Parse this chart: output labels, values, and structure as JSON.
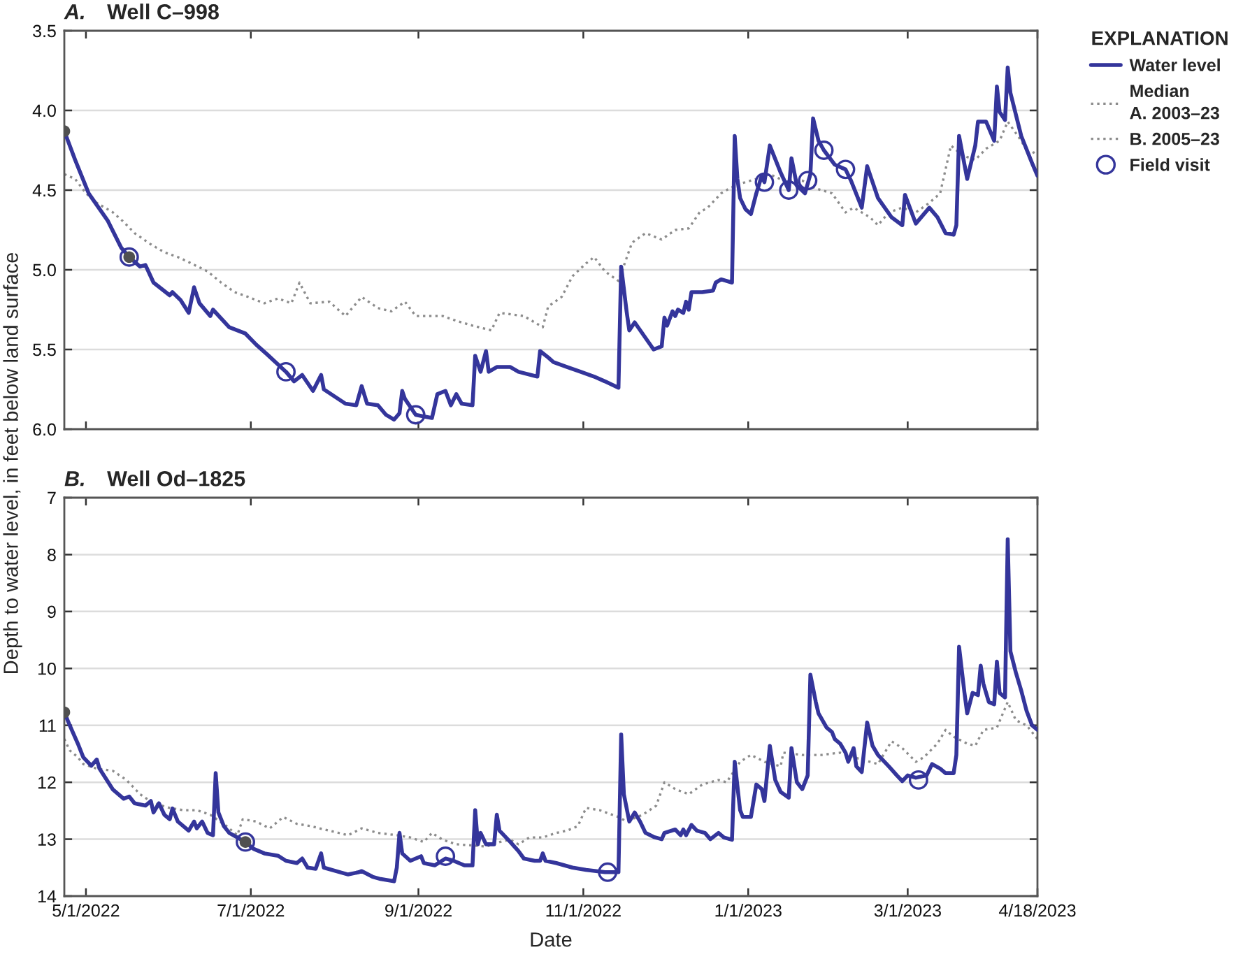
{
  "chart_data": [
    {
      "type": "line",
      "title": "A. Well C–998",
      "ylabel": "Depth to water level, in feet below land surface",
      "legend_title": "EXPLANATION",
      "legend": "right",
      "grid": "y",
      "tick_labels": "y",
      "xlim": [
        "2022-04-23",
        "2023-04-18"
      ],
      "xticks": [
        "2022-05-01",
        "2022-07-01",
        "2022-09-01",
        "2022-11-01",
        "2023-01-01",
        "2023-03-01",
        "2023-04-18"
      ],
      "ylim": [
        6.0,
        3.5
      ],
      "yticks": [
        3.5,
        {
          "value": 4,
          "label": "4.0"
        },
        4.5,
        {
          "value": 5,
          "label": "5.0"
        },
        5.5,
        {
          "value": 6,
          "label": "6.0"
        }
      ],
      "series": [
        {
          "name": "Water level",
          "line_style": "solid",
          "color": "#34359b",
          "x": [
            "2022-04-23",
            "2022-04-27",
            "2022-05-02",
            "2022-05-09",
            "2022-05-14",
            "2022-05-17",
            "2022-05-21",
            "2022-05-23",
            "2022-05-26",
            "2022-06-01",
            "2022-06-02",
            "2022-06-05",
            "2022-06-08",
            "2022-06-10",
            "2022-06-12",
            "2022-06-16",
            "2022-06-17",
            "2022-06-23",
            "2022-06-29",
            "2022-07-03",
            "2022-07-07",
            "2022-07-14",
            "2022-07-17",
            "2022-07-20",
            "2022-07-24",
            "2022-07-27",
            "2022-07-28",
            "2022-08-05",
            "2022-08-09",
            "2022-08-11",
            "2022-08-13",
            "2022-08-17",
            "2022-08-20",
            "2022-08-23",
            "2022-08-25",
            "2022-08-26",
            "2022-08-27",
            "2022-08-31",
            "2022-09-06",
            "2022-09-08",
            "2022-09-11",
            "2022-09-13",
            "2022-09-15",
            "2022-09-17",
            "2022-09-21",
            "2022-09-22",
            "2022-09-24",
            "2022-09-26",
            "2022-09-27",
            "2022-09-30",
            "2022-10-05",
            "2022-10-08",
            "2022-10-15",
            "2022-10-16",
            "2022-10-19",
            "2022-10-21",
            "2022-10-26",
            "2022-10-31",
            "2022-11-05",
            "2022-11-09",
            "2022-11-14",
            "2022-11-15",
            "2022-11-17",
            "2022-11-18",
            "2022-11-20",
            "2022-11-27",
            "2022-11-30",
            "2022-12-01",
            "2022-12-02",
            "2022-12-04",
            "2022-12-05",
            "2022-12-06",
            "2022-12-08",
            "2022-12-09",
            "2022-12-10",
            "2022-12-11",
            "2022-12-15",
            "2022-12-19",
            "2022-12-20",
            "2022-12-22",
            "2022-12-26",
            "2022-12-27",
            "2022-12-28",
            "2022-12-29",
            "2022-12-31",
            "2023-01-02",
            "2023-01-04",
            "2023-01-06",
            "2023-01-07",
            "2023-01-09",
            "2023-01-13",
            "2023-01-16",
            "2023-01-17",
            "2023-01-19",
            "2023-01-22",
            "2023-01-24",
            "2023-01-25",
            "2023-01-27",
            "2023-01-29",
            "2023-02-02",
            "2023-02-06",
            "2023-02-08",
            "2023-02-12",
            "2023-02-14",
            "2023-02-18",
            "2023-02-23",
            "2023-02-27",
            "2023-02-28",
            "2023-03-04",
            "2023-03-09",
            "2023-03-12",
            "2023-03-15",
            "2023-03-18",
            "2023-03-19",
            "2023-03-20",
            "2023-03-23",
            "2023-03-26",
            "2023-03-27",
            "2023-03-30",
            "2023-04-02",
            "2023-04-03",
            "2023-04-04",
            "2023-04-06",
            "2023-04-07",
            "2023-04-08",
            "2023-04-12",
            "2023-04-16",
            "2023-04-18"
          ],
          "values": [
            4.13,
            4.31,
            4.52,
            4.69,
            4.86,
            4.92,
            4.98,
            4.97,
            5.08,
            5.16,
            5.14,
            5.19,
            5.27,
            5.11,
            5.21,
            5.29,
            5.25,
            5.36,
            5.4,
            5.47,
            5.53,
            5.64,
            5.7,
            5.66,
            5.76,
            5.66,
            5.75,
            5.84,
            5.85,
            5.73,
            5.84,
            5.85,
            5.91,
            5.94,
            5.9,
            5.76,
            5.81,
            5.91,
            5.93,
            5.78,
            5.76,
            5.85,
            5.78,
            5.84,
            5.85,
            5.54,
            5.64,
            5.51,
            5.64,
            5.61,
            5.61,
            5.64,
            5.67,
            5.51,
            5.55,
            5.58,
            5.61,
            5.64,
            5.67,
            5.7,
            5.74,
            4.98,
            5.26,
            5.38,
            5.33,
            5.5,
            5.48,
            5.3,
            5.35,
            5.26,
            5.29,
            5.25,
            5.27,
            5.2,
            5.25,
            5.14,
            5.14,
            5.13,
            5.08,
            5.06,
            5.08,
            4.16,
            4.43,
            4.55,
            4.62,
            4.65,
            4.52,
            4.41,
            4.45,
            4.22,
            4.39,
            4.5,
            4.3,
            4.47,
            4.52,
            4.4,
            4.05,
            4.19,
            4.25,
            4.34,
            4.37,
            4.44,
            4.61,
            4.35,
            4.55,
            4.67,
            4.72,
            4.53,
            4.71,
            4.61,
            4.67,
            4.77,
            4.78,
            4.72,
            4.16,
            4.43,
            4.22,
            4.07,
            4.07,
            4.19,
            3.85,
            4.01,
            4.06,
            3.73,
            3.89,
            4.16,
            4.33,
            4.41
          ]
        },
        {
          "name": "Median\nA. 2003–23",
          "line_style": "dotted",
          "color": "#8c8c8c",
          "x": [
            "2022-04-23",
            "2022-04-27",
            "2022-05-01",
            "2022-05-05",
            "2022-05-11",
            "2022-05-15",
            "2022-05-19",
            "2022-05-25",
            "2022-05-30",
            "2022-06-04",
            "2022-06-09",
            "2022-06-15",
            "2022-06-20",
            "2022-06-25",
            "2022-06-30",
            "2022-07-06",
            "2022-07-11",
            "2022-07-16",
            "2022-07-19",
            "2022-07-23",
            "2022-07-30",
            "2022-08-05",
            "2022-08-11",
            "2022-08-17",
            "2022-08-22",
            "2022-08-27",
            "2022-08-31",
            "2022-09-10",
            "2022-09-15",
            "2022-09-21",
            "2022-09-28",
            "2022-10-01",
            "2022-10-10",
            "2022-10-17",
            "2022-10-19",
            "2022-10-24",
            "2022-10-28",
            "2022-11-02",
            "2022-11-05",
            "2022-11-09",
            "2022-11-14",
            "2022-11-19",
            "2022-11-24",
            "2022-11-30",
            "2022-12-05",
            "2022-12-10",
            "2022-12-14",
            "2022-12-17",
            "2022-12-22",
            "2022-12-25",
            "2022-12-29",
            "2023-01-04",
            "2023-01-09",
            "2023-01-14",
            "2023-01-21",
            "2023-01-26",
            "2023-02-01",
            "2023-02-06",
            "2023-02-09",
            "2023-02-15",
            "2023-02-18",
            "2023-02-22",
            "2023-02-27",
            "2023-03-04",
            "2023-03-09",
            "2023-03-13",
            "2023-03-17",
            "2023-03-21",
            "2023-03-26",
            "2023-03-30",
            "2023-04-04",
            "2023-04-07",
            "2023-04-12",
            "2023-04-15",
            "2023-04-18"
          ],
          "values": [
            4.4,
            4.43,
            4.52,
            4.58,
            4.64,
            4.7,
            4.77,
            4.84,
            4.89,
            4.92,
            4.96,
            5.01,
            5.08,
            5.14,
            5.17,
            5.21,
            5.18,
            5.21,
            5.08,
            5.21,
            5.2,
            5.29,
            5.17,
            5.24,
            5.26,
            5.2,
            5.29,
            5.29,
            5.32,
            5.35,
            5.38,
            5.27,
            5.29,
            5.36,
            5.23,
            5.17,
            5.04,
            4.96,
            4.92,
            5.01,
            5.07,
            4.83,
            4.77,
            4.81,
            4.75,
            4.74,
            4.64,
            4.61,
            4.52,
            4.49,
            4.46,
            4.43,
            4.4,
            4.44,
            4.44,
            4.49,
            4.52,
            4.64,
            4.61,
            4.67,
            4.72,
            4.64,
            4.61,
            4.64,
            4.58,
            4.52,
            4.22,
            4.28,
            4.31,
            4.24,
            4.19,
            4.07,
            4.19,
            4.28,
            4.25
          ]
        },
        {
          "type": "scatter",
          "marker": "circle",
          "color": "#505050",
          "x": [
            "2022-04-23",
            "2022-05-17"
          ],
          "values": [
            4.13,
            4.92
          ]
        },
        {
          "name": "Field visit",
          "type": "scatter",
          "marker": "circle",
          "color": "#34359b",
          "x": [
            "2022-05-17",
            "2022-07-14",
            "2022-08-31",
            "2023-01-07",
            "2023-01-16",
            "2023-01-23",
            "2023-01-29",
            "2023-02-06"
          ],
          "values": [
            4.92,
            5.64,
            5.91,
            4.45,
            4.5,
            4.44,
            4.25,
            4.37
          ]
        }
      ]
    },
    {
      "type": "line",
      "title": "B. Well Od–1825",
      "xlabel": "Date",
      "grid": "y",
      "xlim": [
        "2022-04-23",
        "2023-04-18"
      ],
      "xticks": [
        {
          "value": "2022-05-01",
          "label": "5/1/2022"
        },
        {
          "value": "2022-07-01",
          "label": "7/1/2022"
        },
        {
          "value": "2022-09-01",
          "label": "9/1/2022"
        },
        {
          "value": "2022-11-01",
          "label": "11/1/2022"
        },
        {
          "value": "2023-01-01",
          "label": "1/1/2023"
        },
        {
          "value": "2023-03-01",
          "label": "3/1/2023"
        },
        {
          "value": "2023-04-18",
          "label": "4/18/2023"
        }
      ],
      "ylim": [
        14,
        7
      ],
      "yticks": [
        7,
        8,
        9,
        10,
        11,
        12,
        13,
        14
      ],
      "series": [
        {
          "line_style": "solid",
          "color": "#34359b",
          "x": [
            "2022-04-23",
            "2022-04-25",
            "2022-04-28",
            "2022-04-30",
            "2022-05-03",
            "2022-05-05",
            "2022-05-06",
            "2022-05-11",
            "2022-05-15",
            "2022-05-17",
            "2022-05-19",
            "2022-05-23",
            "2022-05-25",
            "2022-05-26",
            "2022-05-28",
            "2022-05-30",
            "2022-06-01",
            "2022-06-02",
            "2022-06-04",
            "2022-06-08",
            "2022-06-10",
            "2022-06-11",
            "2022-06-13",
            "2022-06-15",
            "2022-06-17",
            "2022-06-18",
            "2022-06-19",
            "2022-06-21",
            "2022-06-23",
            "2022-06-26",
            "2022-06-29",
            "2022-07-02",
            "2022-07-06",
            "2022-07-11",
            "2022-07-14",
            "2022-07-18",
            "2022-07-20",
            "2022-07-22",
            "2022-07-25",
            "2022-07-27",
            "2022-07-28",
            "2022-08-03",
            "2022-08-06",
            "2022-08-10",
            "2022-08-11",
            "2022-08-15",
            "2022-08-18",
            "2022-08-23",
            "2022-08-24",
            "2022-08-25",
            "2022-08-26",
            "2022-08-29",
            "2022-09-02",
            "2022-09-03",
            "2022-09-07",
            "2022-09-11",
            "2022-09-14",
            "2022-09-18",
            "2022-09-21",
            "2022-09-22",
            "2022-09-23",
            "2022-09-24",
            "2022-09-26",
            "2022-09-29",
            "2022-09-30",
            "2022-10-01",
            "2022-10-05",
            "2022-10-08",
            "2022-10-10",
            "2022-10-14",
            "2022-10-16",
            "2022-10-17",
            "2022-10-18",
            "2022-10-22",
            "2022-10-28",
            "2022-11-02",
            "2022-11-09",
            "2022-11-14",
            "2022-11-15",
            "2022-11-16",
            "2022-11-18",
            "2022-11-20",
            "2022-11-22",
            "2022-11-24",
            "2022-11-27",
            "2022-11-30",
            "2022-12-01",
            "2022-12-05",
            "2022-12-07",
            "2022-12-08",
            "2022-12-09",
            "2022-12-11",
            "2022-12-13",
            "2022-12-16",
            "2022-12-18",
            "2022-12-21",
            "2022-12-23",
            "2022-12-26",
            "2022-12-27",
            "2022-12-29",
            "2022-12-30",
            "2023-01-02",
            "2023-01-04",
            "2023-01-06",
            "2023-01-07",
            "2023-01-09",
            "2023-01-11",
            "2023-01-13",
            "2023-01-16",
            "2023-01-17",
            "2023-01-19",
            "2023-01-21",
            "2023-01-23",
            "2023-01-24",
            "2023-01-26",
            "2023-01-27",
            "2023-01-30",
            "2023-02-01",
            "2023-02-02",
            "2023-02-04",
            "2023-02-06",
            "2023-02-07",
            "2023-02-09",
            "2023-02-10",
            "2023-02-12",
            "2023-02-14",
            "2023-02-16",
            "2023-02-18",
            "2023-02-22",
            "2023-02-25",
            "2023-02-27",
            "2023-03-01",
            "2023-03-04",
            "2023-03-08",
            "2023-03-10",
            "2023-03-13",
            "2023-03-15",
            "2023-03-18",
            "2023-03-19",
            "2023-03-20",
            "2023-03-22",
            "2023-03-23",
            "2023-03-25",
            "2023-03-27",
            "2023-03-28",
            "2023-03-29",
            "2023-03-31",
            "2023-04-02",
            "2023-04-03",
            "2023-04-04",
            "2023-04-06",
            "2023-04-07",
            "2023-04-08",
            "2023-04-10",
            "2023-04-12",
            "2023-04-14",
            "2023-04-16",
            "2023-04-18"
          ],
          "values": [
            10.77,
            11.0,
            11.32,
            11.56,
            11.71,
            11.6,
            11.76,
            12.13,
            12.29,
            12.25,
            12.37,
            12.41,
            12.33,
            12.53,
            12.37,
            12.57,
            12.65,
            12.46,
            12.69,
            12.85,
            12.69,
            12.81,
            12.69,
            12.89,
            12.93,
            11.84,
            12.53,
            12.77,
            12.89,
            12.97,
            13.05,
            13.17,
            13.25,
            13.29,
            13.38,
            13.42,
            13.34,
            13.5,
            13.52,
            13.25,
            13.5,
            13.58,
            13.62,
            13.58,
            13.56,
            13.66,
            13.7,
            13.74,
            13.5,
            12.89,
            13.25,
            13.38,
            13.3,
            13.42,
            13.46,
            13.34,
            13.38,
            13.46,
            13.46,
            12.49,
            13.09,
            12.89,
            13.09,
            13.09,
            12.57,
            12.85,
            13.05,
            13.21,
            13.34,
            13.38,
            13.38,
            13.25,
            13.38,
            13.42,
            13.5,
            13.54,
            13.58,
            13.58,
            11.16,
            12.21,
            12.69,
            12.53,
            12.69,
            12.89,
            12.96,
            13.0,
            12.89,
            12.83,
            12.93,
            12.83,
            12.93,
            12.75,
            12.85,
            12.89,
            13.0,
            12.89,
            12.97,
            13.01,
            11.64,
            12.49,
            12.61,
            12.61,
            12.04,
            12.12,
            12.33,
            11.36,
            11.96,
            12.17,
            12.27,
            11.4,
            12.0,
            12.12,
            11.88,
            10.11,
            10.59,
            10.79,
            11.04,
            11.12,
            11.24,
            11.32,
            11.48,
            11.64,
            11.4,
            11.72,
            11.82,
            10.95,
            11.36,
            11.52,
            11.72,
            11.88,
            11.98,
            11.88,
            11.92,
            11.88,
            11.68,
            11.76,
            11.84,
            11.84,
            11.52,
            9.62,
            10.43,
            10.79,
            10.43,
            10.47,
            9.95,
            10.27,
            10.59,
            10.63,
            9.88,
            10.43,
            10.51,
            7.73,
            9.7,
            10.07,
            10.39,
            10.75,
            11.0,
            11.08
          ]
        },
        {
          "name": "B. 2005–23",
          "line_style": "dotted",
          "color": "#8c8c8c",
          "x": [
            "2022-04-23",
            "2022-04-25",
            "2022-04-28",
            "2022-04-30",
            "2022-05-05",
            "2022-05-11",
            "2022-05-16",
            "2022-05-21",
            "2022-05-26",
            "2022-06-01",
            "2022-06-06",
            "2022-06-11",
            "2022-06-16",
            "2022-06-22",
            "2022-06-26",
            "2022-06-28",
            "2022-07-03",
            "2022-07-08",
            "2022-07-13",
            "2022-07-18",
            "2022-07-23",
            "2022-07-30",
            "2022-08-06",
            "2022-08-11",
            "2022-08-17",
            "2022-08-24",
            "2022-08-29",
            "2022-09-03",
            "2022-09-06",
            "2022-09-10",
            "2022-09-15",
            "2022-09-21",
            "2022-09-26",
            "2022-10-01",
            "2022-10-05",
            "2022-10-08",
            "2022-10-12",
            "2022-10-17",
            "2022-10-22",
            "2022-10-26",
            "2022-10-30",
            "2022-11-02",
            "2022-11-07",
            "2022-11-14",
            "2022-11-17",
            "2022-11-23",
            "2022-11-28",
            "2022-12-01",
            "2022-12-05",
            "2022-12-10",
            "2022-12-15",
            "2022-12-21",
            "2022-12-24",
            "2022-12-29",
            "2023-01-02",
            "2023-01-07",
            "2023-01-13",
            "2023-01-14",
            "2023-01-21",
            "2023-01-28",
            "2023-02-04",
            "2023-02-09",
            "2023-02-15",
            "2023-02-18",
            "2023-02-23",
            "2023-02-27",
            "2023-03-04",
            "2023-03-07",
            "2023-03-12",
            "2023-03-15",
            "2023-03-18",
            "2023-03-23",
            "2023-03-26",
            "2023-03-29",
            "2023-04-03",
            "2023-04-07",
            "2023-04-10",
            "2023-04-14",
            "2023-04-18"
          ],
          "values": [
            11.24,
            11.44,
            11.56,
            11.68,
            11.76,
            11.8,
            11.96,
            12.21,
            12.37,
            12.45,
            12.49,
            12.49,
            12.57,
            12.77,
            12.93,
            12.65,
            12.69,
            12.81,
            12.61,
            12.73,
            12.77,
            12.85,
            12.93,
            12.81,
            12.89,
            12.93,
            12.97,
            13.05,
            12.89,
            13.01,
            13.09,
            13.11,
            13.13,
            13.05,
            13.01,
            13.09,
            12.97,
            12.97,
            12.89,
            12.85,
            12.77,
            12.45,
            12.49,
            12.61,
            12.69,
            12.57,
            12.41,
            12.0,
            12.12,
            12.21,
            12.04,
            11.96,
            12.0,
            11.64,
            11.52,
            11.64,
            11.72,
            11.48,
            11.52,
            11.52,
            11.48,
            11.56,
            11.64,
            11.68,
            11.28,
            11.4,
            11.64,
            11.56,
            11.32,
            11.08,
            11.2,
            11.32,
            11.36,
            11.08,
            11.04,
            10.59,
            10.91,
            11.0,
            11.24
          ]
        },
        {
          "type": "scatter",
          "marker": "circle",
          "color": "#505050",
          "x": [
            "2022-04-23",
            "2022-06-29"
          ],
          "values": [
            10.77,
            13.05
          ]
        },
        {
          "type": "scatter",
          "marker": "circle",
          "color": "#34359b",
          "x": [
            "2022-06-29",
            "2022-09-11",
            "2022-11-10",
            "2023-03-05"
          ],
          "values": [
            13.05,
            13.3,
            13.58,
            11.96
          ]
        }
      ]
    }
  ]
}
